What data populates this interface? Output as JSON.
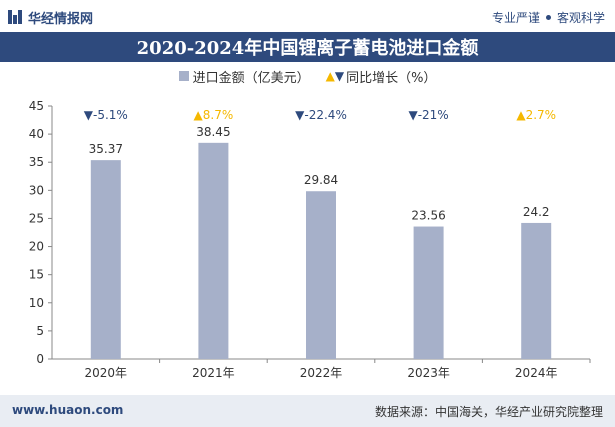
{
  "header": {
    "brand_name": "华经情报网",
    "tagline_left": "专业严谨",
    "tagline_right": "客观科学"
  },
  "chart_data": {
    "type": "bar",
    "title": "2020-2024年中国锂离子蓄电池进口金额",
    "categories": [
      "2020年",
      "2021年",
      "2022年",
      "2023年",
      "2024年"
    ],
    "series": [
      {
        "name": "进口金额（亿美元）",
        "values": [
          35.37,
          38.45,
          29.84,
          23.56,
          24.2
        ],
        "value_labels": [
          "35.37",
          "38.45",
          "29.84",
          "23.56",
          "24.2"
        ]
      }
    ],
    "growth": {
      "name": "同比增长（%）",
      "labels": [
        "-5.1%",
        "8.7%",
        "-22.4%",
        "-21%",
        "2.7%"
      ],
      "directions": [
        "down",
        "up",
        "down",
        "down",
        "up"
      ]
    },
    "yticks": [
      "0",
      "5",
      "10",
      "15",
      "20",
      "25",
      "30",
      "35",
      "40",
      "45"
    ],
    "ylim": [
      0,
      45
    ],
    "colors": {
      "bar": "#a6b0c9",
      "down": "#2e4a7d",
      "up": "#f5b800",
      "axis": "#888888"
    }
  },
  "footer": {
    "url": "www.huaon.com",
    "source": "数据来源：中国海关，华经产业研究院整理"
  }
}
